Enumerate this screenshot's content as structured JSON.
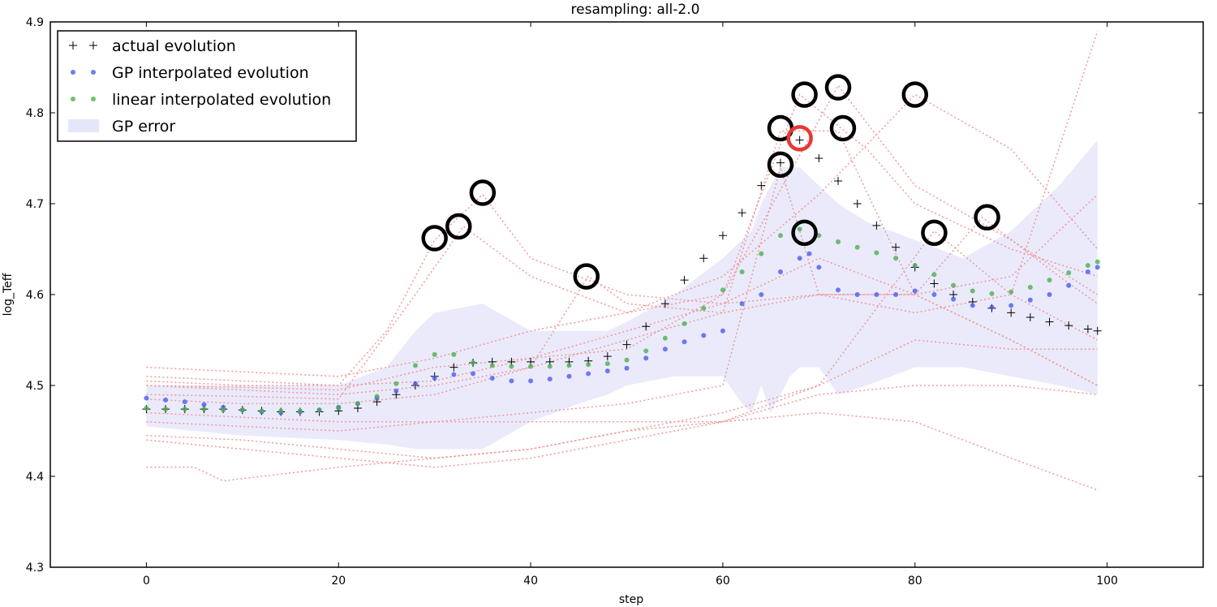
{
  "chart_data": {
    "type": "line",
    "title": "resampling: all-2.0",
    "xlabel": "step",
    "ylabel": "log_Teff",
    "xlim": [
      -10,
      110
    ],
    "ylim": [
      4.3,
      4.9
    ],
    "xticks": [
      "0",
      "20",
      "40",
      "60",
      "80",
      "100"
    ],
    "yticks": [
      "4.3",
      "4.4",
      "4.5",
      "4.6",
      "4.7",
      "4.8",
      "4.9"
    ],
    "grid": false,
    "legend_position": "top-left",
    "legend": [
      {
        "label": "actual evolution",
        "marker": "plus",
        "color": "#000000"
      },
      {
        "label": "GP interpolated evolution",
        "marker": "dot",
        "color": "#4a5cf0"
      },
      {
        "label": "linear interpolated evolution",
        "marker": "dot",
        "color": "#4caf50"
      },
      {
        "label": "GP error",
        "marker": "band",
        "color": "#e6e6fa"
      }
    ],
    "series": [
      {
        "name": "actual evolution",
        "style": "plus",
        "color": "#000000",
        "x": [
          0,
          2,
          4,
          6,
          8,
          10,
          12,
          14,
          16,
          18,
          20,
          22,
          24,
          26,
          28,
          30,
          32,
          34,
          36,
          38,
          40,
          42,
          44,
          46,
          48,
          50,
          52,
          54,
          56,
          58,
          60,
          62,
          64,
          66,
          68,
          70,
          72,
          74,
          76,
          78,
          80,
          82,
          84,
          86,
          88,
          90,
          92,
          94,
          96,
          98,
          99
        ],
        "y": [
          4.474,
          4.474,
          4.474,
          4.474,
          4.474,
          4.473,
          4.472,
          4.471,
          4.471,
          4.471,
          4.472,
          4.475,
          4.482,
          4.49,
          4.5,
          4.51,
          4.52,
          4.525,
          4.526,
          4.526,
          4.526,
          4.526,
          4.526,
          4.527,
          4.532,
          4.545,
          4.565,
          4.59,
          4.616,
          4.64,
          4.665,
          4.69,
          4.72,
          4.745,
          4.77,
          4.75,
          4.725,
          4.7,
          4.676,
          4.652,
          4.63,
          4.612,
          4.6,
          4.592,
          4.585,
          4.58,
          4.575,
          4.57,
          4.566,
          4.562,
          4.56
        ]
      },
      {
        "name": "GP interpolated evolution",
        "style": "dot",
        "color": "#4a5cf0",
        "x": [
          0,
          2,
          4,
          6,
          8,
          10,
          12,
          14,
          16,
          18,
          20,
          22,
          24,
          26,
          28,
          30,
          32,
          34,
          36,
          38,
          40,
          42,
          44,
          46,
          48,
          50,
          52,
          54,
          56,
          58,
          60,
          62,
          64,
          66,
          68,
          69,
          70,
          72,
          74,
          76,
          78,
          80,
          82,
          84,
          86,
          88,
          90,
          92,
          94,
          96,
          98,
          99
        ],
        "y": [
          4.486,
          4.484,
          4.482,
          4.479,
          4.476,
          4.473,
          4.471,
          4.47,
          4.471,
          4.473,
          4.476,
          4.48,
          4.486,
          4.494,
          4.502,
          4.508,
          4.512,
          4.513,
          4.508,
          4.505,
          4.505,
          4.507,
          4.51,
          4.513,
          4.516,
          4.519,
          4.53,
          4.54,
          4.548,
          4.555,
          4.56,
          4.59,
          4.6,
          4.625,
          4.64,
          4.645,
          4.63,
          4.605,
          4.6,
          4.6,
          4.6,
          4.604,
          4.6,
          4.595,
          4.588,
          4.586,
          4.588,
          4.594,
          4.6,
          4.61,
          4.625,
          4.63
        ]
      },
      {
        "name": "linear interpolated evolution",
        "style": "dot",
        "color": "#4caf50",
        "x": [
          0,
          2,
          4,
          6,
          8,
          10,
          12,
          14,
          16,
          18,
          20,
          22,
          24,
          26,
          28,
          30,
          32,
          34,
          36,
          38,
          40,
          42,
          44,
          46,
          48,
          50,
          52,
          54,
          56,
          58,
          60,
          62,
          64,
          66,
          68,
          70,
          72,
          74,
          76,
          78,
          80,
          82,
          84,
          86,
          88,
          90,
          92,
          94,
          96,
          98,
          99
        ],
        "y": [
          4.475,
          4.474,
          4.474,
          4.474,
          4.473,
          4.473,
          4.472,
          4.472,
          4.472,
          4.473,
          4.475,
          4.48,
          4.488,
          4.502,
          4.522,
          4.534,
          4.534,
          4.525,
          4.522,
          4.521,
          4.521,
          4.521,
          4.522,
          4.523,
          4.524,
          4.528,
          4.538,
          4.552,
          4.568,
          4.585,
          4.605,
          4.625,
          4.645,
          4.665,
          4.672,
          4.665,
          4.658,
          4.652,
          4.646,
          4.64,
          4.632,
          4.622,
          4.61,
          4.604,
          4.601,
          4.603,
          4.608,
          4.616,
          4.624,
          4.632,
          4.636
        ]
      }
    ],
    "gp_error_band": {
      "x": [
        0,
        10,
        20,
        25,
        28,
        30,
        35,
        40,
        45,
        48,
        50,
        55,
        60,
        62,
        63,
        64,
        65,
        66,
        67,
        68,
        70,
        72,
        75,
        80,
        85,
        90,
        95,
        99
      ],
      "upper": [
        4.5,
        4.5,
        4.5,
        4.52,
        4.56,
        4.58,
        4.59,
        4.56,
        4.56,
        4.56,
        4.57,
        4.6,
        4.64,
        4.66,
        4.67,
        4.7,
        4.72,
        4.74,
        4.74,
        4.74,
        4.72,
        4.7,
        4.68,
        4.66,
        4.64,
        4.67,
        4.72,
        4.77
      ],
      "lower": [
        4.455,
        4.445,
        4.44,
        4.435,
        4.43,
        4.43,
        4.43,
        4.46,
        4.48,
        4.49,
        4.5,
        4.51,
        4.51,
        4.48,
        4.47,
        4.5,
        4.47,
        4.49,
        4.51,
        4.52,
        4.52,
        4.49,
        4.5,
        4.52,
        4.52,
        4.51,
        4.5,
        4.49
      ]
    },
    "resampled_tracks": [
      {
        "x": [
          0,
          10,
          20,
          30,
          40,
          50,
          60,
          70,
          80,
          90,
          99
        ],
        "y": [
          4.52,
          4.515,
          4.51,
          4.53,
          4.56,
          4.58,
          4.62,
          4.71,
          4.82,
          4.76,
          4.65
        ]
      },
      {
        "x": [
          0,
          10,
          20,
          30,
          40,
          50,
          60,
          70,
          80,
          90,
          99
        ],
        "y": [
          4.51,
          4.505,
          4.5,
          4.505,
          4.53,
          4.56,
          4.59,
          4.64,
          4.6,
          4.55,
          4.5
        ]
      },
      {
        "x": [
          0,
          10,
          20,
          25,
          30,
          35,
          40,
          50,
          60,
          70,
          80,
          90,
          99
        ],
        "y": [
          4.505,
          4.5,
          4.5,
          4.56,
          4.66,
          4.71,
          4.64,
          4.6,
          4.59,
          4.6,
          4.58,
          4.6,
          4.89
        ]
      },
      {
        "x": [
          0,
          10,
          20,
          30,
          40,
          50,
          60,
          68,
          75,
          80,
          90,
          99
        ],
        "y": [
          4.5,
          4.498,
          4.495,
          4.52,
          4.53,
          4.54,
          4.6,
          4.82,
          4.76,
          4.7,
          4.65,
          4.62
        ]
      },
      {
        "x": [
          0,
          10,
          20,
          28,
          33,
          40,
          50,
          60,
          72,
          80,
          90,
          99
        ],
        "y": [
          4.49,
          4.488,
          4.485,
          4.6,
          4.675,
          4.62,
          4.58,
          4.6,
          4.83,
          4.72,
          4.66,
          4.6
        ]
      },
      {
        "x": [
          0,
          10,
          20,
          30,
          40,
          46,
          50,
          60,
          70,
          80,
          90,
          99
        ],
        "y": [
          4.485,
          4.48,
          4.48,
          4.49,
          4.52,
          4.62,
          4.59,
          4.58,
          4.6,
          4.6,
          4.62,
          4.71
        ]
      },
      {
        "x": [
          0,
          10,
          20,
          30,
          40,
          50,
          60,
          66,
          70,
          80,
          87,
          95,
          99
        ],
        "y": [
          4.46,
          4.455,
          4.45,
          4.46,
          4.47,
          4.48,
          4.5,
          4.74,
          4.6,
          4.6,
          4.685,
          4.62,
          4.59
        ]
      },
      {
        "x": [
          0,
          10,
          20,
          30,
          40,
          50,
          60,
          70,
          80,
          90,
          99
        ],
        "y": [
          4.445,
          4.44,
          4.43,
          4.42,
          4.43,
          4.45,
          4.47,
          4.5,
          4.55,
          4.54,
          4.54
        ]
      },
      {
        "x": [
          0,
          10,
          20,
          30,
          40,
          50,
          60,
          70,
          80,
          90,
          99
        ],
        "y": [
          4.44,
          4.43,
          4.42,
          4.41,
          4.42,
          4.44,
          4.46,
          4.49,
          4.5,
          4.5,
          4.49
        ]
      },
      {
        "x": [
          0,
          5,
          8,
          12,
          20,
          30,
          40,
          50,
          60,
          70,
          82,
          90,
          99
        ],
        "y": [
          4.41,
          4.41,
          4.395,
          4.4,
          4.41,
          4.42,
          4.43,
          4.45,
          4.46,
          4.5,
          4.67,
          4.6,
          4.55
        ]
      },
      {
        "x": [
          0,
          10,
          20,
          30,
          40,
          50,
          60,
          70,
          80,
          90,
          99
        ],
        "y": [
          4.47,
          4.465,
          4.46,
          4.46,
          4.46,
          4.46,
          4.46,
          4.47,
          4.46,
          4.42,
          4.385
        ]
      },
      {
        "x": [
          0,
          10,
          20,
          30,
          40,
          50,
          60,
          66,
          72,
          80,
          90,
          99
        ],
        "y": [
          4.5,
          4.495,
          4.49,
          4.5,
          4.52,
          4.55,
          4.58,
          4.78,
          4.78,
          4.6,
          4.55,
          4.5
        ]
      }
    ],
    "highlight_markers": [
      {
        "x": 30,
        "y": 4.662,
        "color": "#000000"
      },
      {
        "x": 32.5,
        "y": 4.675,
        "color": "#000000"
      },
      {
        "x": 35,
        "y": 4.712,
        "color": "#000000"
      },
      {
        "x": 45.8,
        "y": 4.62,
        "color": "#000000"
      },
      {
        "x": 66,
        "y": 4.743,
        "color": "#000000"
      },
      {
        "x": 66,
        "y": 4.783,
        "color": "#000000"
      },
      {
        "x": 68.5,
        "y": 4.82,
        "color": "#000000"
      },
      {
        "x": 68,
        "y": 4.772,
        "color": "#e53935"
      },
      {
        "x": 68.5,
        "y": 4.668,
        "color": "#000000"
      },
      {
        "x": 72,
        "y": 4.828,
        "color": "#000000"
      },
      {
        "x": 72.5,
        "y": 4.783,
        "color": "#000000"
      },
      {
        "x": 80,
        "y": 4.82,
        "color": "#000000"
      },
      {
        "x": 82,
        "y": 4.668,
        "color": "#000000"
      },
      {
        "x": 87.5,
        "y": 4.685,
        "color": "#000000"
      }
    ]
  }
}
